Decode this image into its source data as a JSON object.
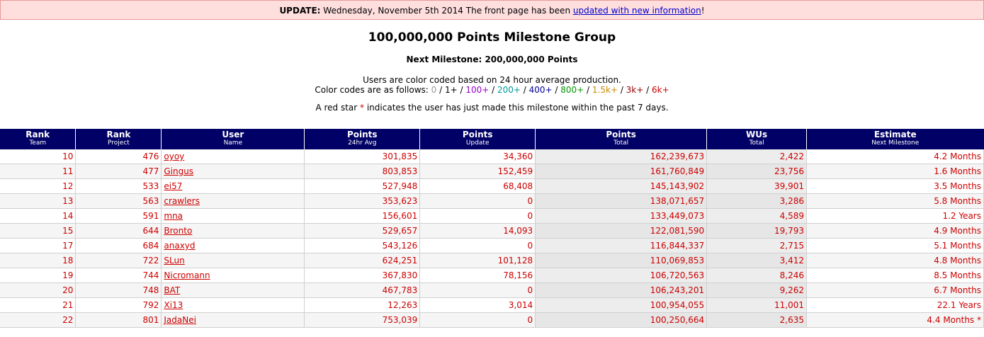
{
  "banner": {
    "label": "UPDATE:",
    "text": " Wednesday, November 5th 2014 The front page has been ",
    "link": "updated with new information",
    "suffix": "!"
  },
  "page_title": "100,000,000 Points Milestone Group",
  "next_milestone": "Next Milestone: 200,000,000 Points",
  "info_line": "Users are color coded based on 24 hour average production.",
  "color_codes_label": "Color codes are as follows: ",
  "color_codes": [
    "0",
    "1+",
    "100+",
    "200+",
    "400+",
    "800+",
    "1.5k+",
    "3k+",
    "6k+"
  ],
  "color_code_colors": [
    "#999999",
    "#000000",
    "#9900cc",
    "#009999",
    "#000099",
    "#009900",
    "#cc8800",
    "#990000",
    "#cc0000"
  ],
  "star_note": {
    "before": "A red star ",
    "star": "*",
    "after": " indicates the user has just made this milestone within the past 7 days."
  },
  "columns": [
    {
      "title": "Rank",
      "sub": "Team"
    },
    {
      "title": "Rank",
      "sub": "Project"
    },
    {
      "title": "User",
      "sub": "Name"
    },
    {
      "title": "Points",
      "sub": "24hr Avg"
    },
    {
      "title": "Points",
      "sub": "Update"
    },
    {
      "title": "Points",
      "sub": "Total"
    },
    {
      "title": "WUs",
      "sub": "Total"
    },
    {
      "title": "Estimate",
      "sub": "Next Milestone"
    }
  ],
  "rows": [
    {
      "team_rank": "10",
      "project_rank": "476",
      "name": "oyoy",
      "avg": "301,835",
      "update": "34,360",
      "total": "162,239,673",
      "wus": "2,422",
      "estimate": "4.2 Months"
    },
    {
      "team_rank": "11",
      "project_rank": "477",
      "name": "Gingus",
      "avg": "803,853",
      "update": "152,459",
      "total": "161,760,849",
      "wus": "23,756",
      "estimate": "1.6 Months"
    },
    {
      "team_rank": "12",
      "project_rank": "533",
      "name": "ei57",
      "avg": "527,948",
      "update": "68,408",
      "total": "145,143,902",
      "wus": "39,901",
      "estimate": "3.5 Months"
    },
    {
      "team_rank": "13",
      "project_rank": "563",
      "name": "crawlers",
      "avg": "353,623",
      "update": "0",
      "total": "138,071,657",
      "wus": "3,286",
      "estimate": "5.8 Months"
    },
    {
      "team_rank": "14",
      "project_rank": "591",
      "name": "mna",
      "avg": "156,601",
      "update": "0",
      "total": "133,449,073",
      "wus": "4,589",
      "estimate": "1.2 Years"
    },
    {
      "team_rank": "15",
      "project_rank": "644",
      "name": "Bronto",
      "avg": "529,657",
      "update": "14,093",
      "total": "122,081,590",
      "wus": "19,793",
      "estimate": "4.9 Months"
    },
    {
      "team_rank": "17",
      "project_rank": "684",
      "name": "anaxyd",
      "avg": "543,126",
      "update": "0",
      "total": "116,844,337",
      "wus": "2,715",
      "estimate": "5.1 Months"
    },
    {
      "team_rank": "18",
      "project_rank": "722",
      "name": "SLun",
      "avg": "624,251",
      "update": "101,128",
      "total": "110,069,853",
      "wus": "3,412",
      "estimate": "4.8 Months"
    },
    {
      "team_rank": "19",
      "project_rank": "744",
      "name": "Nicromann",
      "avg": "367,830",
      "update": "78,156",
      "total": "106,720,563",
      "wus": "8,246",
      "estimate": "8.5 Months"
    },
    {
      "team_rank": "20",
      "project_rank": "748",
      "name": "BAT",
      "avg": "467,783",
      "update": "0",
      "total": "106,243,201",
      "wus": "9,262",
      "estimate": "6.7 Months"
    },
    {
      "team_rank": "21",
      "project_rank": "792",
      "name": "Xi13",
      "avg": "12,263",
      "update": "3,014",
      "total": "100,954,055",
      "wus": "11,001",
      "estimate": "22.1 Years"
    },
    {
      "team_rank": "22",
      "project_rank": "801",
      "name": "JadaNei",
      "avg": "753,039",
      "update": "0",
      "total": "100,250,664",
      "wus": "2,635",
      "estimate": "4.4 Months *"
    }
  ]
}
